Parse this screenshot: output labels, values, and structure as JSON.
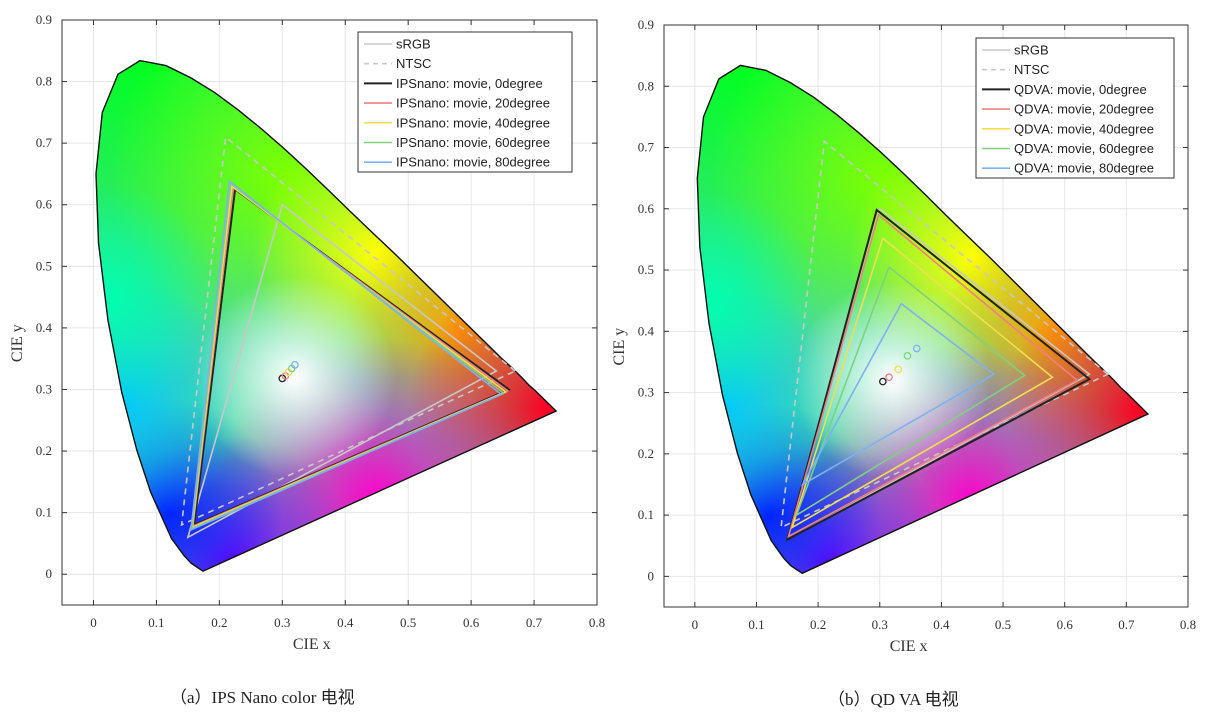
{
  "chart_data": [
    {
      "type": "line",
      "caption": "（a）IPS Nano color 电视",
      "xlabel": "CIE x",
      "ylabel": "CIE y",
      "xlim": [
        -0.05,
        0.8
      ],
      "ylim": [
        -0.05,
        0.9
      ],
      "xticks": [
        0,
        0.1,
        0.2,
        0.3,
        0.4,
        0.5,
        0.6,
        0.7,
        0.8
      ],
      "xtick_labels": [
        "0",
        "0.1",
        "0.2",
        "0.3",
        "0.4",
        "0.5",
        "0.6",
        "0.7",
        "0.8"
      ],
      "yticks": [
        0,
        0.1,
        0.2,
        0.3,
        0.4,
        0.5,
        0.6,
        0.7,
        0.8,
        0.9
      ],
      "ytick_labels": [
        "0",
        "0.1",
        "0.2",
        "0.3",
        "0.4",
        "0.5",
        "0.6",
        "0.7",
        "0.8",
        "0.9"
      ],
      "grid": true,
      "legend_position": "top-right",
      "series": [
        {
          "name": "sRGB",
          "color": "#c8c8c8",
          "style": "solid",
          "points": [
            [
              0.64,
              0.33
            ],
            [
              0.3,
              0.6
            ],
            [
              0.15,
              0.06
            ]
          ],
          "white_point": null
        },
        {
          "name": "NTSC",
          "color": "#c8c8c8",
          "style": "dashed",
          "points": [
            [
              0.67,
              0.33
            ],
            [
              0.21,
              0.71
            ],
            [
              0.14,
              0.08
            ]
          ],
          "white_point": null
        },
        {
          "name": "IPSnano: movie,  0degree",
          "color": "#222222",
          "style": "solid",
          "points": [
            [
              0.66,
              0.3
            ],
            [
              0.225,
              0.625
            ],
            [
              0.16,
              0.08
            ]
          ],
          "white_point": [
            0.3,
            0.318
          ]
        },
        {
          "name": "IPSnano: movie, 20degree",
          "color": "#f08080",
          "style": "solid",
          "points": [
            [
              0.658,
              0.298
            ],
            [
              0.222,
              0.628
            ],
            [
              0.158,
              0.078
            ]
          ],
          "white_point": [
            0.305,
            0.322
          ]
        },
        {
          "name": "IPSnano: movie, 40degree",
          "color": "#f0e050",
          "style": "solid",
          "points": [
            [
              0.655,
              0.296
            ],
            [
              0.22,
              0.63
            ],
            [
              0.157,
              0.076
            ]
          ],
          "white_point": [
            0.31,
            0.328
          ]
        },
        {
          "name": "IPSnano: movie, 60degree",
          "color": "#80d080",
          "style": "solid",
          "points": [
            [
              0.652,
              0.294
            ],
            [
              0.218,
              0.634
            ],
            [
              0.156,
              0.074
            ]
          ],
          "white_point": [
            0.315,
            0.334
          ]
        },
        {
          "name": "IPSnano: movie, 80degree",
          "color": "#80b0f0",
          "style": "solid",
          "points": [
            [
              0.648,
              0.292
            ],
            [
              0.216,
              0.638
            ],
            [
              0.155,
              0.072
            ]
          ],
          "white_point": [
            0.32,
            0.34
          ]
        }
      ]
    },
    {
      "type": "line",
      "caption": "（b）QD VA 电视",
      "xlabel": "CIE x",
      "ylabel": "CIE y",
      "xlim": [
        -0.05,
        0.8
      ],
      "ylim": [
        -0.05,
        0.9
      ],
      "xticks": [
        0,
        0.1,
        0.2,
        0.3,
        0.4,
        0.5,
        0.6,
        0.7,
        0.8
      ],
      "xtick_labels": [
        "0",
        "0.1",
        "0.2",
        "0.3",
        "0.4",
        "0.5",
        "0.6",
        "0.7",
        "0.8"
      ],
      "yticks": [
        0,
        0.1,
        0.2,
        0.3,
        0.4,
        0.5,
        0.6,
        0.7,
        0.8,
        0.9
      ],
      "ytick_labels": [
        "0",
        "0.1",
        "0.2",
        "0.3",
        "0.4",
        "0.5",
        "0.6",
        "0.7",
        "0.8",
        "0.9"
      ],
      "grid": true,
      "legend_position": "top-right",
      "series": [
        {
          "name": "sRGB",
          "color": "#c8c8c8",
          "style": "solid",
          "points": [
            [
              0.64,
              0.33
            ],
            [
              0.3,
              0.6
            ],
            [
              0.15,
              0.06
            ]
          ],
          "white_point": null
        },
        {
          "name": "NTSC",
          "color": "#c8c8c8",
          "style": "dashed",
          "points": [
            [
              0.67,
              0.33
            ],
            [
              0.21,
              0.71
            ],
            [
              0.14,
              0.08
            ]
          ],
          "white_point": null
        },
        {
          "name": "QDVA: movie,  0degree",
          "color": "#222222",
          "style": "solid",
          "points": [
            [
              0.64,
              0.322
            ],
            [
              0.295,
              0.598
            ],
            [
              0.15,
              0.06
            ]
          ],
          "white_point": [
            0.305,
            0.318
          ]
        },
        {
          "name": "QDVA: movie, 20degree",
          "color": "#f08080",
          "style": "solid",
          "points": [
            [
              0.62,
              0.32
            ],
            [
              0.298,
              0.59
            ],
            [
              0.152,
              0.065
            ]
          ],
          "white_point": [
            0.315,
            0.325
          ]
        },
        {
          "name": "QDVA: movie, 40degree",
          "color": "#f0e050",
          "style": "solid",
          "points": [
            [
              0.58,
              0.325
            ],
            [
              0.305,
              0.552
            ],
            [
              0.158,
              0.08
            ]
          ],
          "white_point": [
            0.33,
            0.338
          ]
        },
        {
          "name": "QDVA: movie, 60degree",
          "color": "#80d080",
          "style": "solid",
          "points": [
            [
              0.535,
              0.328
            ],
            [
              0.315,
              0.505
            ],
            [
              0.165,
              0.1
            ]
          ],
          "white_point": [
            0.345,
            0.36
          ]
        },
        {
          "name": "QDVA: movie, 80degree",
          "color": "#80b0f0",
          "style": "solid",
          "points": [
            [
              0.485,
              0.33
            ],
            [
              0.335,
              0.445
            ],
            [
              0.175,
              0.15
            ]
          ],
          "white_point": [
            0.36,
            0.372
          ]
        }
      ]
    }
  ]
}
